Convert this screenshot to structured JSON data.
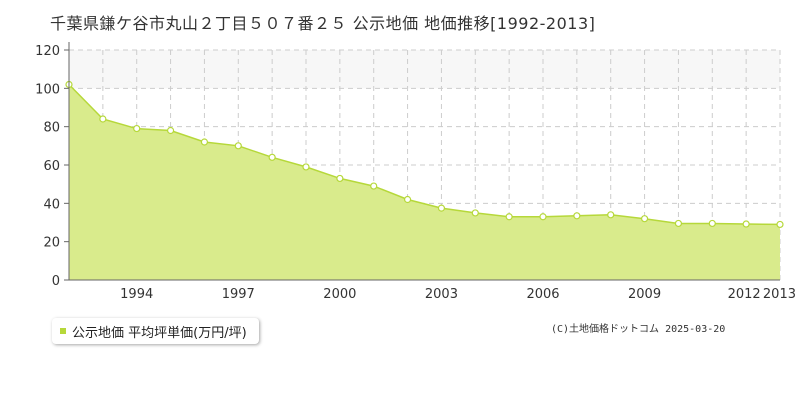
{
  "title": "千葉県鎌ケ谷市丸山２丁目５０７番２５ 公示地価 地価推移[1992-2013]",
  "legend": {
    "label": "公示地価 平均坪単価(万円/坪)",
    "color": "#b6d83a"
  },
  "credit": "(C)土地価格ドットコム 2025-03-20",
  "colors": {
    "fill": "#d9eb8c",
    "line": "#b6d83a",
    "grid": "#cccccc",
    "axis": "#666666",
    "band": "#f7f7f7"
  },
  "chart_data": {
    "type": "area",
    "x": [
      1992,
      1993,
      1994,
      1995,
      1996,
      1997,
      1998,
      1999,
      2000,
      2001,
      2002,
      2003,
      2004,
      2005,
      2006,
      2007,
      2008,
      2009,
      2010,
      2011,
      2012,
      2013
    ],
    "series": [
      {
        "values": [
          102,
          84,
          79,
          78,
          72,
          70,
          64,
          59,
          53,
          49,
          42,
          37.5,
          35,
          33,
          33,
          33.5,
          34,
          32,
          29.5,
          29.5,
          29.2,
          29
        ]
      }
    ],
    "xlim": [
      1992,
      2013
    ],
    "ylim": [
      0,
      120
    ],
    "x_tick_labels": [
      "1994",
      "1997",
      "2000",
      "2003",
      "2006",
      "2009",
      "2012",
      "2013"
    ],
    "x_ticks": [
      1994,
      1997,
      2000,
      2003,
      2006,
      2009,
      2012,
      2013
    ],
    "y_ticks": [
      0,
      20,
      40,
      60,
      80,
      100,
      120
    ],
    "y_tick_labels": [
      "0",
      "20",
      "40",
      "60",
      "80",
      "100",
      "120"
    ],
    "grid": true,
    "legend_position": "bottom-left"
  }
}
